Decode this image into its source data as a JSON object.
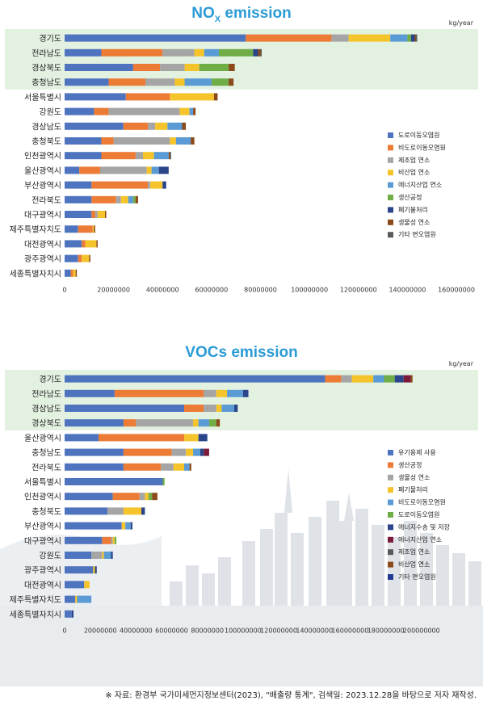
{
  "chart_data": [
    {
      "type": "bar",
      "orientation": "horizontal",
      "stacked": true,
      "title": "NOX emission",
      "title_main": "NO",
      "title_sub": "X",
      "title_rest": " emission",
      "unit": "kg/year",
      "xlim": [
        0,
        160000000
      ],
      "xticks": [
        "0",
        "20000000",
        "40000000",
        "60000000",
        "80000000",
        "100000000",
        "120000000",
        "140000000",
        "160000000"
      ],
      "highlighted_rows": 4,
      "legend_position": "right",
      "categories": [
        "경기도",
        "전라남도",
        "경상북도",
        "충청남도",
        "서울특별시",
        "강원도",
        "경상남도",
        "충청북도",
        "인천광역시",
        "울산광역시",
        "부산광역시",
        "전라북도",
        "대구광역시",
        "제주특별자치도",
        "대전광역시",
        "광주광역시",
        "세종특별자치시"
      ],
      "series": [
        {
          "name": "도로이동오염원",
          "color": "#4e74bf",
          "values": [
            74000000,
            15000000,
            28000000,
            18000000,
            25000000,
            12000000,
            24000000,
            15000000,
            15000000,
            6000000,
            11000000,
            11000000,
            11000000,
            5500000,
            7000000,
            5500000,
            2500000
          ]
        },
        {
          "name": "비도로이동오염원",
          "color": "#ec7b35",
          "values": [
            35000000,
            25000000,
            11000000,
            15000000,
            18000000,
            6000000,
            10000000,
            5000000,
            14000000,
            8500000,
            23000000,
            10000000,
            1500000,
            6000000,
            1500000,
            1500000,
            1000000
          ]
        },
        {
          "name": "제조업 연소",
          "color": "#a5a5a5",
          "values": [
            7000000,
            13000000,
            10000000,
            12000000,
            0,
            29000000,
            3000000,
            23000000,
            3000000,
            19000000,
            1000000,
            2000000,
            1000000,
            0,
            0,
            0,
            0
          ]
        },
        {
          "name": "비산업 연소",
          "color": "#f5c42a",
          "values": [
            17000000,
            4000000,
            6000000,
            4000000,
            18000000,
            4000000,
            5000000,
            2500000,
            4500000,
            2000000,
            5000000,
            3000000,
            3000000,
            500000,
            4500000,
            3000000,
            1000000
          ]
        },
        {
          "name": "에너지산업 연소",
          "color": "#5a9bd5",
          "values": [
            7000000,
            6000000,
            0,
            11000000,
            0,
            1500000,
            6000000,
            6000000,
            6000000,
            3000000,
            0,
            2000000,
            0,
            0,
            0,
            0,
            0
          ]
        },
        {
          "name": "생산공정",
          "color": "#70ad47",
          "values": [
            1500000,
            14000000,
            12000000,
            7000000,
            0,
            0,
            0,
            0,
            0,
            0,
            0,
            1000000,
            0,
            0,
            0,
            0,
            0
          ]
        },
        {
          "name": "폐기물처리",
          "color": "#2a4589",
          "values": [
            1500000,
            2000000,
            0,
            0,
            0,
            0,
            0,
            0,
            0,
            4000000,
            1500000,
            0,
            0,
            0,
            0,
            0,
            0
          ]
        },
        {
          "name": "생물성 연소",
          "color": "#8b4a1a",
          "values": [
            500000,
            1000000,
            2500000,
            2000000,
            1500000,
            1000000,
            1500000,
            1500000,
            500000,
            0,
            0,
            1000000,
            500000,
            500000,
            500000,
            500000,
            500000
          ]
        },
        {
          "name": "기타 면오염원",
          "color": "#595959",
          "values": [
            500000,
            500000,
            0,
            0,
            0,
            0,
            0,
            0,
            500000,
            0,
            0,
            0,
            0,
            0,
            0,
            0,
            0
          ]
        }
      ]
    },
    {
      "type": "bar",
      "orientation": "horizontal",
      "stacked": true,
      "title": "VOCs emission",
      "unit": "kg/year",
      "xlim": [
        0,
        220000000
      ],
      "xticks": [
        "0",
        "20000000",
        "40000000",
        "60000000",
        "80000000",
        "100000000",
        "120000000",
        "140000000",
        "160000000",
        "180000000",
        "200000000"
      ],
      "highlighted_rows": 4,
      "legend_position": "right",
      "categories": [
        "경기도",
        "전라남도",
        "경상남도",
        "경상북도",
        "울산광역시",
        "충청남도",
        "전라북도",
        "서울특별시",
        "인천광역시",
        "충청북도",
        "부산광역시",
        "대구광역시",
        "강원도",
        "광주광역시",
        "대전광역시",
        "제주특별자치도",
        "세종특별자치시"
      ],
      "series": [
        {
          "name": "유기용제 사용",
          "color": "#4e74bf",
          "values": [
            146000000,
            28000000,
            67000000,
            33000000,
            19000000,
            33000000,
            33000000,
            55000000,
            27000000,
            24000000,
            32000000,
            21000000,
            15000000,
            16000000,
            11000000,
            6000000,
            4000000
          ]
        },
        {
          "name": "생산공정",
          "color": "#ec7b35",
          "values": [
            9000000,
            50000000,
            11000000,
            7000000,
            48000000,
            27000000,
            21000000,
            0,
            15000000,
            0,
            0,
            5000000,
            0,
            0,
            0,
            0,
            0
          ]
        },
        {
          "name": "생물성 연소",
          "color": "#a5a5a5",
          "values": [
            6000000,
            7000000,
            7000000,
            32000000,
            0,
            8000000,
            7000000,
            0,
            3000000,
            9000000,
            0,
            1000000,
            6000000,
            0,
            0,
            0,
            0
          ]
        },
        {
          "name": "폐기물처리",
          "color": "#f5c42a",
          "values": [
            12000000,
            6000000,
            3000000,
            3000000,
            8000000,
            4000000,
            6000000,
            0,
            2000000,
            10000000,
            2000000,
            1000000,
            1000000,
            1000000,
            3000000,
            1000000,
            0
          ]
        },
        {
          "name": "비도로이동오염원",
          "color": "#5a9bd5",
          "values": [
            6000000,
            9000000,
            7000000,
            6000000,
            0,
            4000000,
            3000000,
            0,
            0,
            0,
            3000000,
            0,
            4000000,
            0,
            0,
            8000000,
            0
          ]
        },
        {
          "name": "도로이동오염원",
          "color": "#70ad47",
          "values": [
            6000000,
            0,
            0,
            4000000,
            0,
            0,
            0,
            1000000,
            2000000,
            0,
            0,
            1000000,
            0,
            0,
            0,
            0,
            0
          ]
        },
        {
          "name": "에너지수송 및 저장",
          "color": "#2a4589",
          "values": [
            5000000,
            3000000,
            2000000,
            0,
            5000000,
            2000000,
            0,
            0,
            0,
            2000000,
            1000000,
            0,
            1000000,
            1000000,
            0,
            0,
            1000000
          ]
        },
        {
          "name": "에너지산업 연소",
          "color": "#7a1a3a",
          "values": [
            4000000,
            0,
            0,
            0,
            0,
            3000000,
            0,
            0,
            0,
            0,
            0,
            0,
            0,
            0,
            0,
            0,
            0
          ]
        },
        {
          "name": "제조업 연소",
          "color": "#595959",
          "values": [
            0,
            0,
            0,
            0,
            0,
            0,
            0,
            0,
            0,
            0,
            0,
            0,
            0,
            0,
            0,
            0,
            0
          ]
        },
        {
          "name": "비산업 연소",
          "color": "#8b4a1a",
          "values": [
            1000000,
            0,
            0,
            2000000,
            0,
            0,
            1000000,
            0,
            3000000,
            0,
            0,
            0,
            0,
            0,
            0,
            0,
            0
          ]
        },
        {
          "name": "기타 면오염원",
          "color": "#1f3a93",
          "values": [
            0,
            0,
            0,
            0,
            0,
            0,
            0,
            0,
            0,
            0,
            0,
            0,
            0,
            0,
            0,
            0,
            0
          ]
        }
      ]
    }
  ],
  "source_note": "※  자료: 환경부 국가미세먼지정보센터(2023), \"배출량 통계\", 검색일: 2023.12.28을 바탕으로 저자 재작성."
}
